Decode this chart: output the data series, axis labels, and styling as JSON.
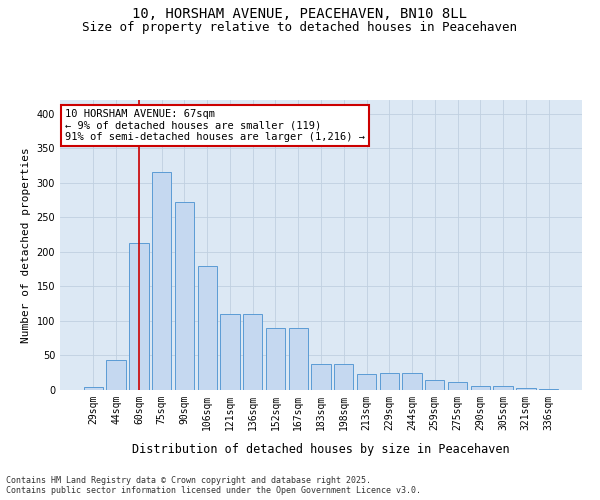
{
  "title": "10, HORSHAM AVENUE, PEACEHAVEN, BN10 8LL",
  "subtitle": "Size of property relative to detached houses in Peacehaven",
  "xlabel": "Distribution of detached houses by size in Peacehaven",
  "ylabel": "Number of detached properties",
  "categories": [
    "29sqm",
    "44sqm",
    "60sqm",
    "75sqm",
    "90sqm",
    "106sqm",
    "121sqm",
    "136sqm",
    "152sqm",
    "167sqm",
    "183sqm",
    "198sqm",
    "213sqm",
    "229sqm",
    "244sqm",
    "259sqm",
    "275sqm",
    "290sqm",
    "305sqm",
    "321sqm",
    "336sqm"
  ],
  "values": [
    5,
    44,
    213,
    316,
    272,
    180,
    110,
    110,
    90,
    90,
    38,
    38,
    23,
    24,
    24,
    14,
    11,
    6,
    6,
    3,
    2
  ],
  "bar_color": "#c5d8f0",
  "bar_edge_color": "#5b9bd5",
  "bar_edge_width": 0.7,
  "vline_x_index": 2,
  "vline_color": "#cc0000",
  "annotation_text": "10 HORSHAM AVENUE: 67sqm\n← 9% of detached houses are smaller (119)\n91% of semi-detached houses are larger (1,216) →",
  "annotation_box_color": "#ffffff",
  "annotation_box_edge": "#cc0000",
  "ylim": [
    0,
    420
  ],
  "grid_color": "#c0d0e0",
  "background_color": "#dce8f4",
  "footer": "Contains HM Land Registry data © Crown copyright and database right 2025.\nContains public sector information licensed under the Open Government Licence v3.0.",
  "title_fontsize": 10,
  "subtitle_fontsize": 9,
  "xlabel_fontsize": 8.5,
  "ylabel_fontsize": 8,
  "tick_fontsize": 7,
  "annotation_fontsize": 7.5,
  "footer_fontsize": 6
}
